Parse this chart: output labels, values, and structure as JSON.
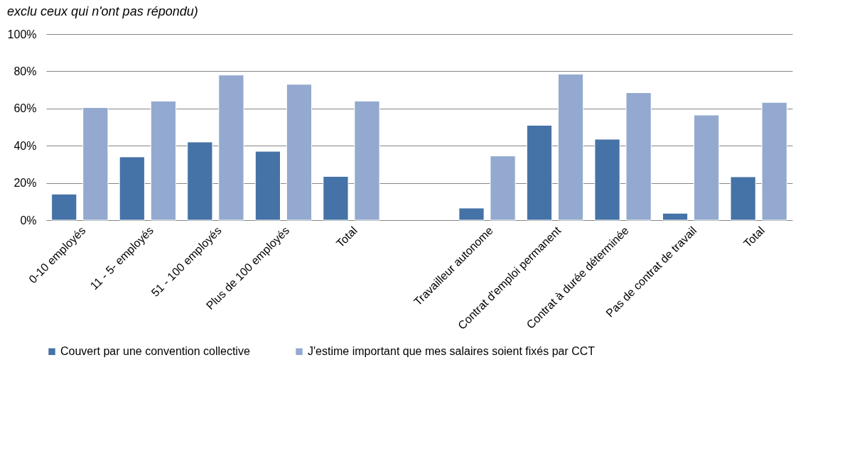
{
  "chart_data": {
    "type": "bar",
    "subtitle": "exclu ceux qui n'ont pas répondu)",
    "categories": [
      "0-10 employés",
      "11 - 5- employés",
      "51 - 100 employés",
      "Plus de 100 employés",
      "Total",
      null,
      "Travailleur autonome",
      "Contrat d'emploi permanent",
      "Contrat à durée déterminée",
      "Pas de contrat de travail",
      "Total"
    ],
    "series": [
      {
        "name": "Couvert par une convention collective",
        "color": "#4572a7",
        "values": [
          14,
          34,
          42,
          37,
          23.5,
          null,
          6.5,
          51,
          43.5,
          3.7,
          23.3
        ]
      },
      {
        "name": "J'estime important que mes salaires soient fixés par CCT",
        "color": "#93a9cf",
        "values": [
          60.5,
          64,
          78,
          73,
          64,
          null,
          34.5,
          78.5,
          68.5,
          56.5,
          63.3
        ]
      }
    ],
    "ylim": [
      0,
      100
    ],
    "yticks": [
      {
        "value": 0,
        "label": "0%"
      },
      {
        "value": 20,
        "label": "20%"
      },
      {
        "value": 40,
        "label": "40%"
      },
      {
        "value": 60,
        "label": "60%"
      },
      {
        "value": 80,
        "label": "80%"
      },
      {
        "value": 100,
        "label": "100%"
      }
    ],
    "grid": "y",
    "legend": "bottom"
  }
}
